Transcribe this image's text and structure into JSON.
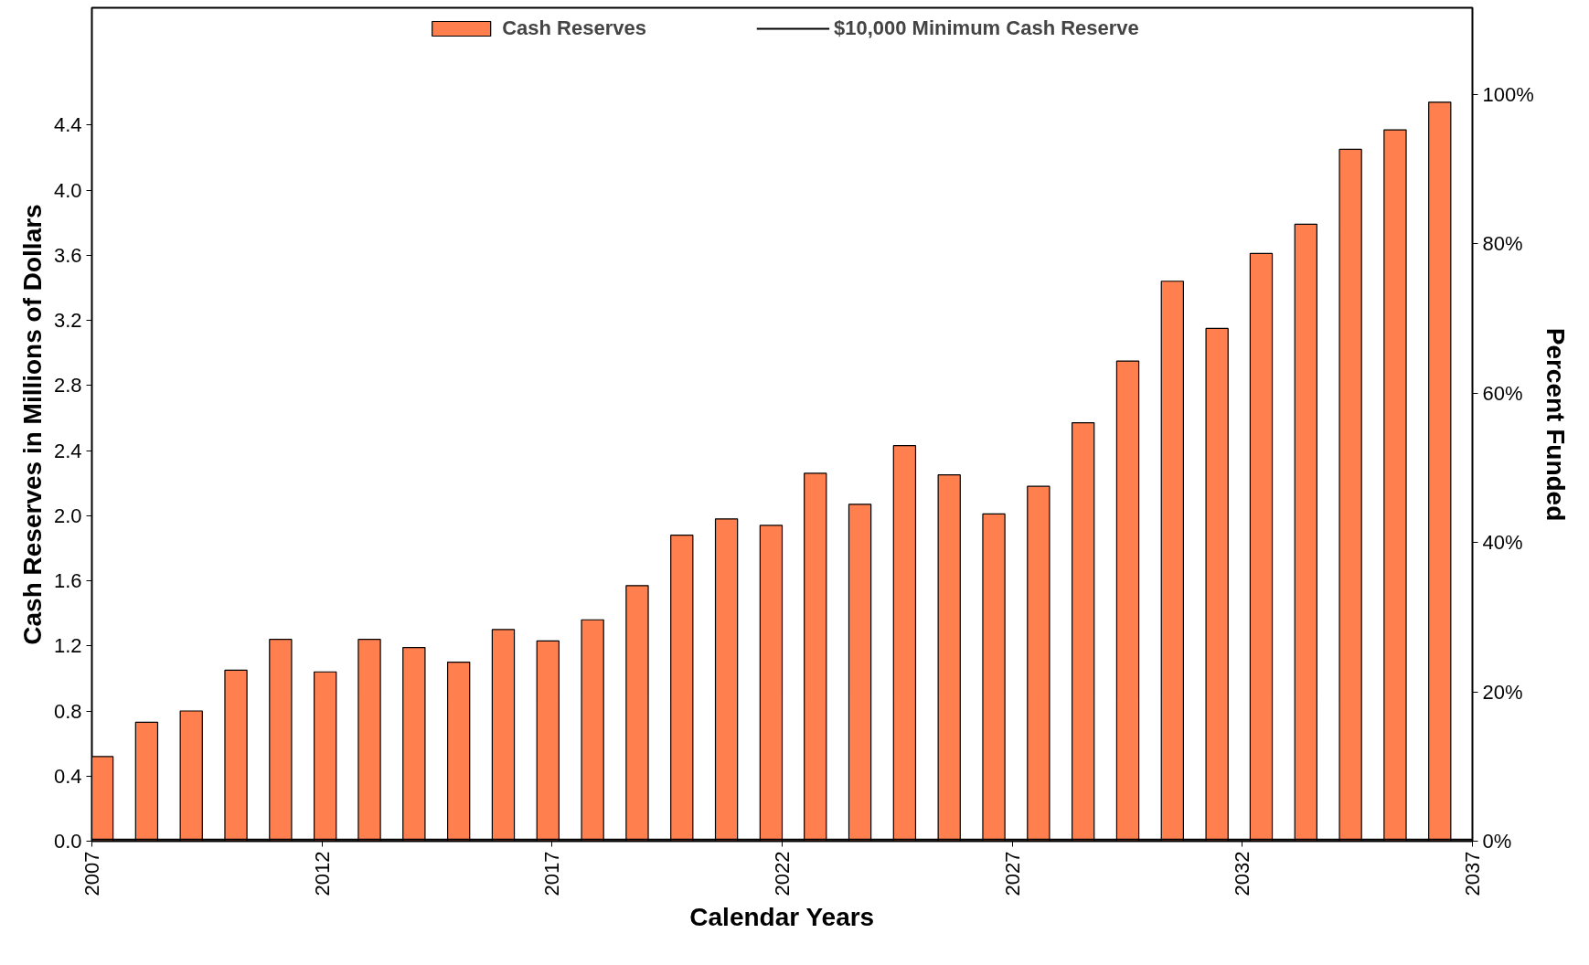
{
  "chart_data": {
    "type": "bar",
    "xlabel": "Calendar Years",
    "ylabel": "Cash Reserves in Millions of Dollars",
    "y2label": "Percent Funded",
    "x": [
      2007.22,
      2008.19,
      2009.16,
      2010.13,
      2011.1,
      2012.07,
      2013.03,
      2014.0,
      2014.97,
      2015.94,
      2016.91,
      2017.88,
      2018.85,
      2019.82,
      2020.79,
      2021.76,
      2022.72,
      2023.69,
      2024.66,
      2025.63,
      2026.6,
      2027.57,
      2028.54,
      2029.51,
      2030.48,
      2031.45,
      2032.41,
      2033.38,
      2034.35,
      2035.32,
      2036.29
    ],
    "series": [
      {
        "name": "Cash Reserves",
        "color": "#ff7f4f",
        "values": [
          0.52,
          0.73,
          0.8,
          1.05,
          1.24,
          1.04,
          1.24,
          1.19,
          1.1,
          1.3,
          1.23,
          1.36,
          1.57,
          1.88,
          1.98,
          1.94,
          2.26,
          2.07,
          2.43,
          2.25,
          2.01,
          2.18,
          2.57,
          2.95,
          3.44,
          3.15,
          3.61,
          3.79,
          4.25,
          4.37,
          4.54
        ]
      }
    ],
    "ref_lines": [
      {
        "axis": "y",
        "value": 0.01,
        "label": "$10,000 Minimum Cash Reserve",
        "color": "#000000"
      }
    ],
    "xlim": [
      2007,
      2037
    ],
    "xticks": [
      2007,
      2012,
      2017,
      2022,
      2027,
      2032,
      2037
    ],
    "ylim": [
      0,
      5.12
    ],
    "yticks": [
      {
        "value": 0,
        "label": "0.0"
      },
      {
        "value": 0.4,
        "label": "0.4"
      },
      {
        "value": 0.8,
        "label": "0.8"
      },
      {
        "value": 1.2,
        "label": "1.2"
      },
      {
        "value": 1.6,
        "label": "1.6"
      },
      {
        "value": 2.0,
        "label": "2.0"
      },
      {
        "value": 2.4,
        "label": "2.4"
      },
      {
        "value": 2.8,
        "label": "2.8"
      },
      {
        "value": 3.2,
        "label": "3.2"
      },
      {
        "value": 3.6,
        "label": "3.6"
      },
      {
        "value": 4.0,
        "label": "4.0"
      },
      {
        "value": 4.4,
        "label": "4.4"
      }
    ],
    "y2lim": [
      0,
      111.6
    ],
    "y2ticks": [
      {
        "value": 0,
        "label": "0%"
      },
      {
        "value": 20,
        "label": "20%"
      },
      {
        "value": 40,
        "label": "40%"
      },
      {
        "value": 60,
        "label": "60%"
      },
      {
        "value": 80,
        "label": "80%"
      },
      {
        "value": 100,
        "label": "100%"
      }
    ],
    "grid": false,
    "legend": "top"
  }
}
